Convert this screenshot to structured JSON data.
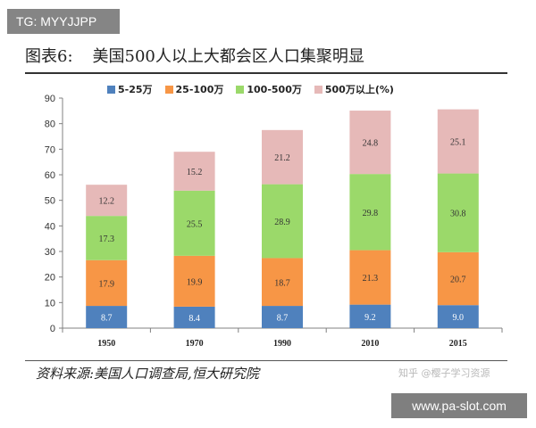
{
  "tag_badge": "TG: MYYJJPP",
  "title": {
    "figure_label": "图表6:",
    "text": "美国500人以上大都会区人口集聚明显"
  },
  "source_text": "资料来源:美国人口调查局,恒大研究院",
  "watermark_text": "知乎 @樱子学习资源",
  "url_badge": "www.pa-slot.com",
  "colors": {
    "series_5_25": "#4f81bd",
    "series_25_100": "#f79646",
    "series_100_500": "#9bd96a",
    "series_500_plus": "#e6b9b8",
    "axis": "#808080"
  },
  "chart_data": {
    "type": "bar",
    "stacked": true,
    "categories": [
      "1950",
      "1970",
      "1990",
      "2010",
      "2015"
    ],
    "ylim": [
      0,
      90
    ],
    "yticks": [
      0,
      10,
      20,
      30,
      40,
      50,
      60,
      70,
      80,
      90
    ],
    "grid": false,
    "legend_position": "top",
    "title": "",
    "xlabel": "",
    "ylabel": "",
    "series": [
      {
        "name": "5-25万",
        "values": [
          8.7,
          8.4,
          8.7,
          9.2,
          9.0
        ]
      },
      {
        "name": "25-100万",
        "values": [
          17.9,
          19.9,
          18.7,
          21.3,
          20.7
        ]
      },
      {
        "name": "100-500万",
        "values": [
          17.3,
          25.5,
          28.9,
          29.8,
          30.8
        ]
      },
      {
        "name": "500万以上(%)",
        "values": [
          12.2,
          15.2,
          21.2,
          24.8,
          25.1
        ]
      }
    ]
  }
}
